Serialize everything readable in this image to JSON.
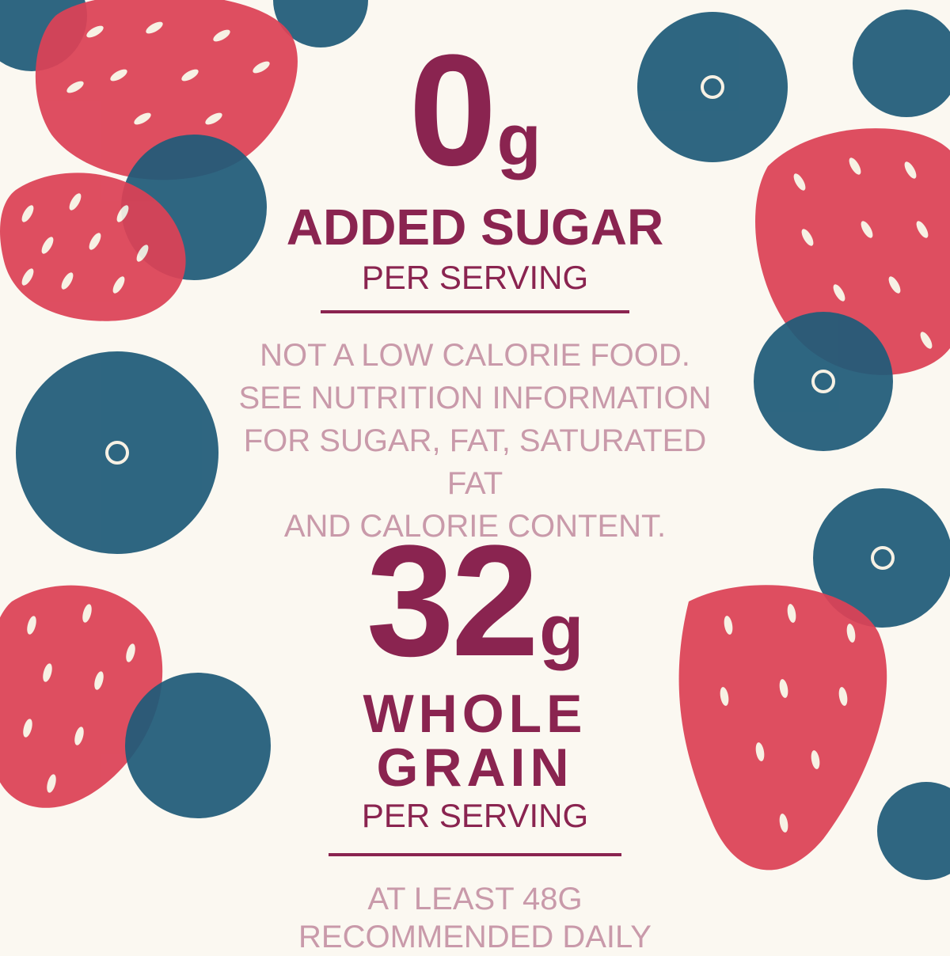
{
  "colors": {
    "background": "#fbf8f1",
    "primary_text": "#8a2450",
    "secondary_text": "#c99aaa",
    "strawberry": "#e0435a",
    "blueberry": "#1f5e80",
    "seed": "#fbf8f1"
  },
  "decorations": {
    "strawberry_icon": "strawberry-icon",
    "blueberry_icon": "blueberry-icon"
  },
  "sugar": {
    "amount": "0",
    "unit": "g",
    "label": "ADDED SUGAR",
    "sublabel": "PER SERVING"
  },
  "disclaimer": {
    "lines": [
      "NOT A LOW CALORIE FOOD.",
      "SEE NUTRITION INFORMATION",
      "FOR SUGAR, FAT, SATURATED FAT",
      "AND CALORIE CONTENT."
    ]
  },
  "whole_grain": {
    "amount": "32",
    "unit": "g",
    "label_line1": "WHOLE",
    "label_line2": "GRAIN",
    "sublabel": "PER SERVING"
  },
  "footnote": "AT LEAST 48G RECOMMENDED DAILY"
}
